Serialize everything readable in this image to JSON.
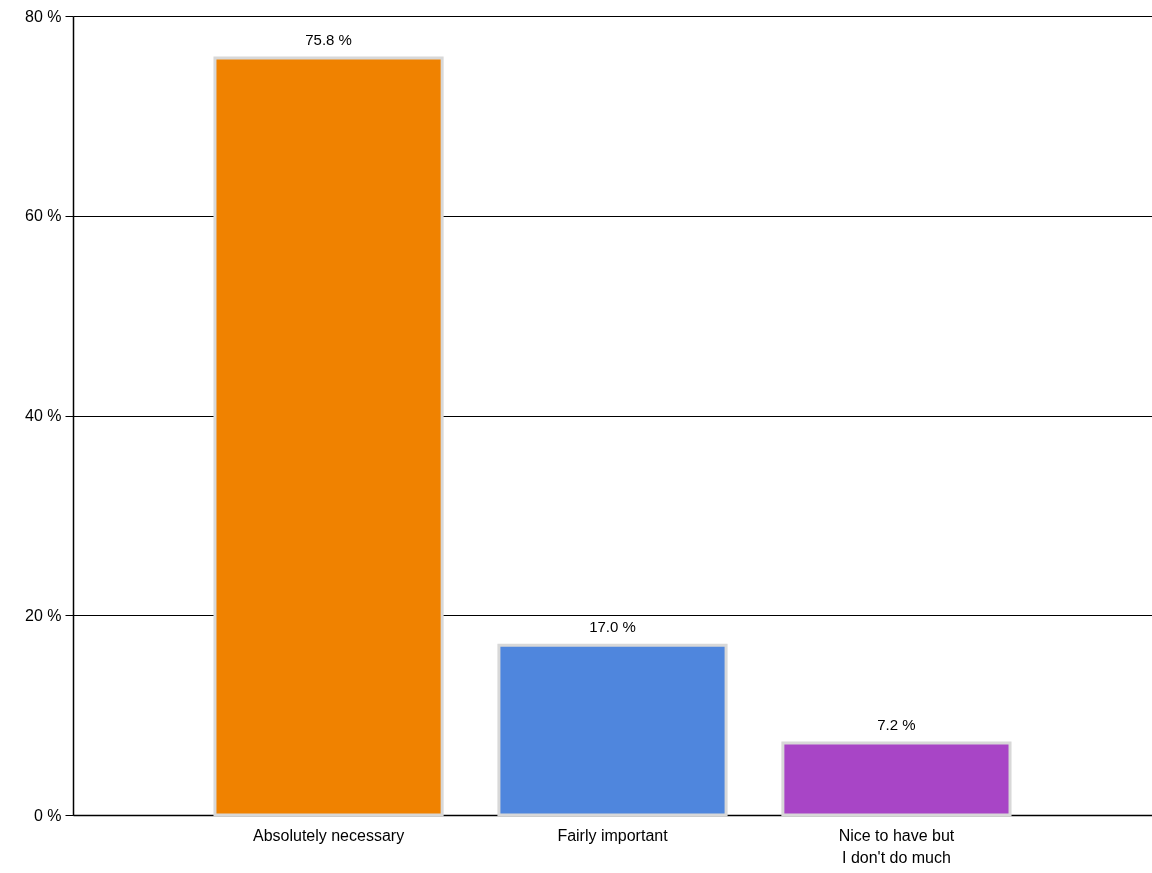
{
  "chart_data": {
    "type": "bar",
    "categories": [
      "Absolutely necessary",
      "Fairly important",
      "Nice to have but\nI don't do much"
    ],
    "values": [
      75.8,
      17.0,
      7.2
    ],
    "colors": [
      "#f08200",
      "#4f86dd",
      "#a845c6"
    ],
    "value_labels": [
      "75.8 %",
      "17.0 %",
      "7.2 %"
    ],
    "ylim": [
      0,
      80
    ],
    "yticks": [
      {
        "value": 0,
        "label": "0 %"
      },
      {
        "value": 20,
        "label": "20 %"
      },
      {
        "value": 40,
        "label": "40 %"
      },
      {
        "value": 60,
        "label": "60 %"
      },
      {
        "value": 80,
        "label": "80 %"
      }
    ],
    "grid": "y"
  }
}
